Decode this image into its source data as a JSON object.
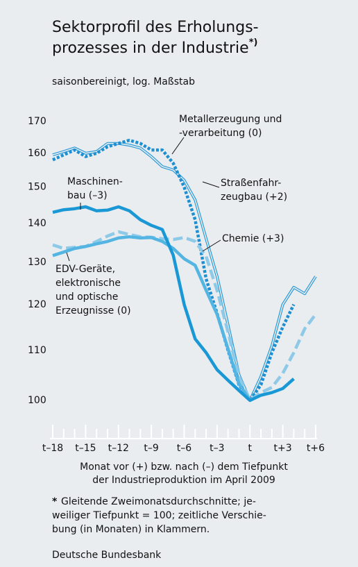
{
  "chart_data": {
    "type": "line",
    "title_lines": [
      "Sektorprofil des Erholungs-",
      "prozesses in der Industrie"
    ],
    "title_note": "*)",
    "subtitle": "saisonbereinigt, log. Maßstab",
    "x": [
      -18,
      -17,
      -16,
      -15,
      -14,
      -13,
      -12,
      -11,
      -10,
      -9,
      -8,
      -7,
      -6,
      -5,
      -4,
      -3,
      -2,
      -1,
      0,
      1,
      2,
      3,
      4,
      5,
      6
    ],
    "xlim": [
      -18,
      6
    ],
    "xticks": [
      {
        "value": -18,
        "label": "t–18"
      },
      {
        "value": -15,
        "label": "t–15"
      },
      {
        "value": -12,
        "label": "t–12"
      },
      {
        "value": -9,
        "label": "t–9"
      },
      {
        "value": -6,
        "label": "t–6"
      },
      {
        "value": -3,
        "label": "t–3"
      },
      {
        "value": 0,
        "label": "t"
      },
      {
        "value": 3,
        "label": "t+3"
      },
      {
        "value": 6,
        "label": "t+6"
      }
    ],
    "xminor_ticks": [
      -17,
      -16,
      -14,
      -13,
      -11,
      -10,
      -8,
      -7,
      -5,
      -4,
      -2,
      -1,
      1,
      2,
      4,
      5
    ],
    "ylim": [
      93,
      176
    ],
    "yticks": [
      100,
      110,
      120,
      130,
      140,
      150,
      160,
      170
    ],
    "log_scale": true,
    "xlabel_lines": [
      "Monat vor (+) bzw. nach (–) dem Tiefpunkt",
      "der Industrieproduktion im April 2009"
    ],
    "series": [
      {
        "name_lines": [
          "Straßenfahr-",
          "zeugbau (+2)"
        ],
        "color": "#2a9ad8",
        "style": "double",
        "values": [
          159.5,
          160.5,
          161.6,
          160,
          160.5,
          163,
          163,
          162.5,
          161.6,
          159,
          156,
          155,
          152,
          146.4,
          136,
          126.6,
          115.4,
          105,
          100,
          104.6,
          110.9,
          120,
          124,
          122.5,
          126.6
        ]
      },
      {
        "name_lines": [
          "Metallerzeugung und",
          "-verarbeitung (0)"
        ],
        "color": "#1e8fd0",
        "style": "dotted",
        "values": [
          158,
          159.5,
          161,
          159,
          160,
          162,
          163,
          164,
          163,
          161,
          161,
          157,
          150,
          141,
          126,
          118,
          110,
          103,
          100,
          103,
          109.5,
          115,
          120,
          null,
          null
        ]
      },
      {
        "name_lines": [
          "Chemie (+3)"
        ],
        "color": "#8ecae8",
        "style": "dashed",
        "values": [
          134.4,
          133.5,
          133.8,
          134,
          135.3,
          136.7,
          137.8,
          137.1,
          136.5,
          136.4,
          136,
          135.8,
          136.3,
          135.3,
          131.5,
          123.3,
          113.9,
          104.6,
          100,
          101.5,
          102.5,
          105.3,
          109.5,
          114.6,
          117.8
        ]
      },
      {
        "name_lines": [
          "EDV-Geräte,",
          "elektronische",
          "und optische",
          "Erzeugnisse (0)"
        ],
        "color": "#55b5e2",
        "style": "solid",
        "values": [
          131.7,
          132.6,
          133.5,
          134,
          134.7,
          135.3,
          136.2,
          136.5,
          136.2,
          136.3,
          135.3,
          133.5,
          130.9,
          129.3,
          123.3,
          117.8,
          110.3,
          103.2,
          100,
          null,
          null,
          null,
          null,
          null,
          null
        ]
      },
      {
        "name_lines": [
          "Maschinen-",
          "bau (–3)"
        ],
        "color": "#1a98d6",
        "style": "solid",
        "values": [
          143,
          143.7,
          144,
          144.5,
          143.4,
          143.6,
          144.5,
          143.4,
          141,
          139.5,
          138.4,
          131.8,
          120,
          112.4,
          109.5,
          106,
          103.9,
          101.9,
          100,
          101,
          101.5,
          102.3,
          104.2,
          null,
          null
        ]
      }
    ],
    "footnote_marker": "*",
    "footnote_lines": [
      "Gleitende Zweimonatsdurchschnitte; je-",
      "weiliger Tiefpunkt = 100; zeitliche Verschie-",
      "bung (in Monaten) in Klammern."
    ],
    "source": "Deutsche Bundesbank"
  }
}
